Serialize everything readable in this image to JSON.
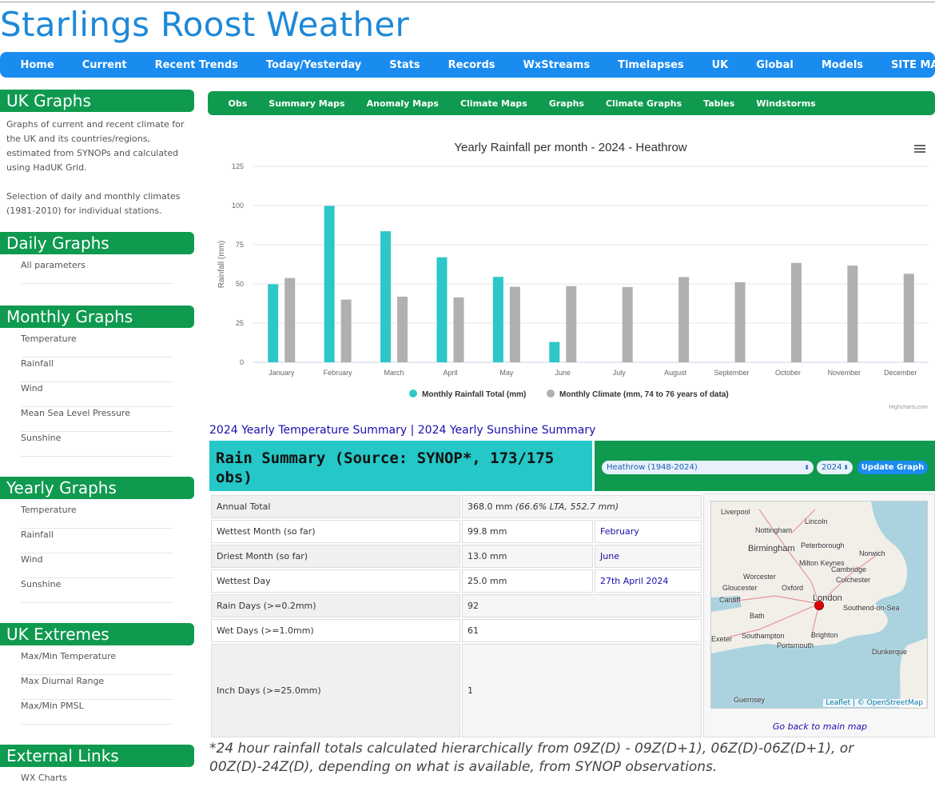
{
  "site": {
    "title": "Starlings Roost Weather"
  },
  "main_nav": [
    "Home",
    "Current",
    "Recent Trends",
    "Today/Yesterday",
    "Stats",
    "Records",
    "WxStreams",
    "Timelapses",
    "UK",
    "Global",
    "Models",
    "SITE MAP"
  ],
  "sidebar": {
    "uk_graphs": {
      "title": "UK Graphs",
      "desc1": "Graphs of current and recent climate for the UK and its countries/regions, estimated from SYNOPs and calculated using HadUK Grid.",
      "desc2": "Selection of daily and monthly climates (1981-2010) for individual stations."
    },
    "daily": {
      "title": "Daily Graphs",
      "items": [
        "All parameters"
      ]
    },
    "monthly": {
      "title": "Monthly Graphs",
      "items": [
        "Temperature",
        "Rainfall",
        "Wind",
        "Mean Sea Level Pressure",
        "Sunshine"
      ]
    },
    "yearly": {
      "title": "Yearly Graphs",
      "items": [
        "Temperature",
        "Rainfall",
        "Wind",
        "Sunshine"
      ]
    },
    "extremes": {
      "title": "UK Extremes",
      "items": [
        "Max/Min Temperature",
        "Max Diurnal Range",
        "Max/Min PMSL"
      ]
    },
    "external": {
      "title": "External Links",
      "items": [
        "WX Charts"
      ]
    }
  },
  "sub_nav": [
    "Obs",
    "Summary Maps",
    "Anomaly Maps",
    "Climate Maps",
    "Graphs",
    "Climate Graphs",
    "Tables",
    "Windstorms"
  ],
  "chart_data": {
    "type": "bar",
    "title": "Yearly Rainfall per month - 2024 - Heathrow",
    "xlabel": "",
    "ylabel": "Rainfall (mm)",
    "ylim": [
      0,
      125
    ],
    "yticks": [
      0,
      25,
      50,
      75,
      100,
      125
    ],
    "grid": true,
    "legend_position": "bottom-center",
    "categories": [
      "January",
      "February",
      "March",
      "April",
      "May",
      "June",
      "July",
      "August",
      "September",
      "October",
      "November",
      "December"
    ],
    "series": [
      {
        "name": "Monthly Rainfall Total (mm)",
        "color": "#2ec7c9",
        "values": [
          49.8,
          99.8,
          83.6,
          67.0,
          54.5,
          13.0,
          null,
          null,
          null,
          null,
          null,
          null
        ]
      },
      {
        "name": "Monthly Climate (mm, 74 to 76 years of data)",
        "color": "#b0b0b0",
        "values": [
          53.8,
          40.0,
          41.9,
          41.4,
          48.2,
          48.6,
          48.0,
          54.4,
          51.1,
          63.4,
          61.7,
          56.5
        ]
      }
    ],
    "credit": "Highcharts.com"
  },
  "summary_links": {
    "temperature": "2024 Yearly Temperature Summary",
    "separator": "|",
    "sunshine": "2024 Yearly Sunshine Summary"
  },
  "rain_summary": {
    "title": "Rain Summary (Source: SYNOP*, 173/175 obs)",
    "station_select": "Heathrow (1948-2024)",
    "year_select": "2024",
    "update_button": "Update Graph",
    "rows": [
      {
        "label": "Annual Total",
        "value": "368.0 mm",
        "extra": "(66.6% LTA, 552.7 mm)"
      },
      {
        "label": "Wettest Month (so far)",
        "value": "99.8 mm",
        "link": "February"
      },
      {
        "label": "Driest Month (so far)",
        "value": "13.0 mm",
        "link": "June"
      },
      {
        "label": "Wettest Day",
        "value": "25.0 mm",
        "link": "27th April 2024"
      },
      {
        "label": "Rain Days (>=0.2mm)",
        "value": "92"
      },
      {
        "label": "Wet Days (>=1.0mm)",
        "value": "61"
      },
      {
        "label": "Inch Days (>=25.0mm)",
        "value": "1"
      }
    ]
  },
  "map": {
    "labels": [
      "Liverpool",
      "Lincoln",
      "Nottingham",
      "Birmingham",
      "Peterborough",
      "Norwich",
      "Milton Keynes",
      "Cambridge",
      "Worcester",
      "Colchester",
      "Gloucester",
      "Oxford",
      "Cardiff",
      "London",
      "Southend-on-Sea",
      "Bath",
      "Exeter",
      "Southampton",
      "Brighton",
      "Portsmouth",
      "Dunkerque",
      "Guernsey"
    ],
    "attribution": "Leaflet | © OpenStreetMap",
    "back_link": "Go back to main map"
  },
  "footnote": "*24 hour rainfall totals calculated hierarchically from 09Z(D) - 09Z(D+1), 06Z(D)-06Z(D+1), or 00Z(D)-24Z(D), depending on what is available, from SYNOP observations."
}
